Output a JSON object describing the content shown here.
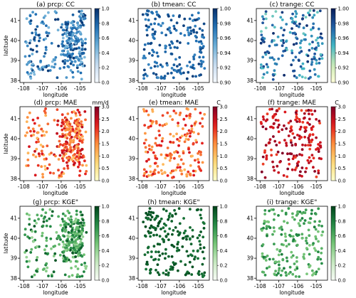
{
  "chart_data": [
    {
      "type": "scatter",
      "title": "(a) prcp: CC",
      "xlabel": "longitude",
      "ylabel": "latitude",
      "xlim": [
        -108.2,
        -104.4
      ],
      "ylim": [
        37.9,
        41.6
      ],
      "xticks": [
        "-108",
        "-107",
        "-106",
        "-105"
      ],
      "yticks": [
        "38",
        "39",
        "40",
        "41"
      ],
      "colormap": "Blues",
      "clim": [
        0,
        1
      ],
      "cbar_ticks": [
        "0.0",
        "0.2",
        "0.4",
        "0.6",
        "0.8",
        "1.0"
      ],
      "cbar_unit": "",
      "value_range": [
        0.25,
        0.98
      ],
      "point_count": 300,
      "cluster": "east"
    },
    {
      "type": "scatter",
      "title": "(b) tmean: CC",
      "xlabel": "longitude",
      "ylabel": "",
      "xlim": [
        -108.2,
        -104.4
      ],
      "ylim": [
        37.9,
        41.6
      ],
      "xticks": [
        "-108",
        "-107",
        "-106",
        "-105"
      ],
      "yticks": [
        "38",
        "39",
        "40",
        "41"
      ],
      "colormap": "Blues",
      "clim": [
        0.9,
        1
      ],
      "cbar_ticks": [
        "0.90",
        "0.92",
        "0.94",
        "0.96",
        "0.98",
        "1.00"
      ],
      "cbar_unit": "",
      "value_range": [
        0.955,
        0.995
      ],
      "point_count": 190,
      "cluster": "none"
    },
    {
      "type": "scatter",
      "title": "(c) trange: CC",
      "xlabel": "longitude",
      "ylabel": "",
      "xlim": [
        -108.2,
        -104.4
      ],
      "ylim": [
        37.9,
        41.6
      ],
      "xticks": [
        "-108",
        "-107",
        "-106",
        "-105"
      ],
      "yticks": [
        "38",
        "39",
        "40",
        "41"
      ],
      "colormap": "YlGnBu",
      "clim": [
        0.9,
        1
      ],
      "cbar_ticks": [
        "0.90",
        "0.92",
        "0.94",
        "0.96",
        "0.98",
        "1.00"
      ],
      "cbar_unit": "",
      "value_range": [
        0.92,
        0.995
      ],
      "point_count": 190,
      "cluster": "none"
    },
    {
      "type": "scatter",
      "title": "(d) prcp: MAE",
      "xlabel": "longitude",
      "ylabel": "latitude",
      "xlim": [
        -108.2,
        -104.4
      ],
      "ylim": [
        37.9,
        41.6
      ],
      "xticks": [
        "-108",
        "-107",
        "-106",
        "-105"
      ],
      "yticks": [
        "38",
        "39",
        "40",
        "41"
      ],
      "colormap": "YlOrRd",
      "clim": [
        0,
        3
      ],
      "cbar_ticks": [
        "0.0",
        "0.5",
        "1.0",
        "1.5",
        "2.0",
        "2.5",
        "3.0"
      ],
      "cbar_unit": "mm/d",
      "value_range": [
        0.4,
        2.6
      ],
      "point_count": 300,
      "cluster": "east"
    },
    {
      "type": "scatter",
      "title": "(e) tmean: MAE",
      "xlabel": "longitude",
      "ylabel": "",
      "xlim": [
        -108.2,
        -104.4
      ],
      "ylim": [
        37.9,
        41.6
      ],
      "xticks": [
        "-108",
        "-107",
        "-106",
        "-105"
      ],
      "yticks": [
        "38",
        "39",
        "40",
        "41"
      ],
      "colormap": "YlOrRd",
      "clim": [
        0,
        3
      ],
      "cbar_ticks": [
        "0.0",
        "0.5",
        "1.0",
        "1.5",
        "2.0",
        "2.5",
        "3.0"
      ],
      "cbar_unit": "C",
      "value_range": [
        0.6,
        2.4
      ],
      "point_count": 190,
      "cluster": "none"
    },
    {
      "type": "scatter",
      "title": "(f) trange: MAE",
      "xlabel": "longitude",
      "ylabel": "",
      "xlim": [
        -108.2,
        -104.4
      ],
      "ylim": [
        37.9,
        41.6
      ],
      "xticks": [
        "-108",
        "-107",
        "-106",
        "-105"
      ],
      "yticks": [
        "38",
        "39",
        "40",
        "41"
      ],
      "colormap": "YlOrRd",
      "clim": [
        0,
        3
      ],
      "cbar_ticks": [
        "0.0",
        "0.5",
        "1.0",
        "1.5",
        "2.0",
        "2.5",
        "3.0"
      ],
      "cbar_unit": "C",
      "value_range": [
        1.6,
        3.0
      ],
      "point_count": 190,
      "cluster": "none"
    },
    {
      "type": "scatter",
      "title": "(g) prcp: KGE\"",
      "xlabel": "longitude",
      "ylabel": "latitude",
      "xlim": [
        -108.2,
        -104.4
      ],
      "ylim": [
        37.9,
        41.6
      ],
      "xticks": [
        "-108",
        "-107",
        "-106",
        "-105"
      ],
      "yticks": [
        "38",
        "39",
        "40",
        "41"
      ],
      "colormap": "Greens",
      "clim": [
        0,
        1
      ],
      "cbar_ticks": [
        "0.0",
        "0.2",
        "0.4",
        "0.6",
        "0.8",
        "1.0"
      ],
      "cbar_unit": "",
      "value_range": [
        0.2,
        0.95
      ],
      "point_count": 300,
      "cluster": "east"
    },
    {
      "type": "scatter",
      "title": "(h) tmean: KGE\"",
      "xlabel": "longitude",
      "ylabel": "",
      "xlim": [
        -108.2,
        -104.4
      ],
      "ylim": [
        37.9,
        41.6
      ],
      "xticks": [
        "-108",
        "-107",
        "-106",
        "-105"
      ],
      "yticks": [
        "38",
        "39",
        "40",
        "41"
      ],
      "colormap": "Greens",
      "clim": [
        0,
        1
      ],
      "cbar_ticks": [
        "0.0",
        "0.2",
        "0.4",
        "0.6",
        "0.8",
        "1.0"
      ],
      "cbar_unit": "",
      "value_range": [
        0.78,
        0.97
      ],
      "point_count": 190,
      "cluster": "none"
    },
    {
      "type": "scatter",
      "title": "(i) trange: KGE\"",
      "xlabel": "longitude",
      "ylabel": "",
      "xlim": [
        -108.2,
        -104.4
      ],
      "ylim": [
        37.9,
        41.6
      ],
      "xticks": [
        "-108",
        "-107",
        "-106",
        "-105"
      ],
      "yticks": [
        "38",
        "39",
        "40",
        "41"
      ],
      "colormap": "Greens",
      "clim": [
        0,
        1
      ],
      "cbar_ticks": [
        "0.0",
        "0.2",
        "0.4",
        "0.6",
        "0.8",
        "1.0"
      ],
      "cbar_unit": "",
      "value_range": [
        0.35,
        0.8
      ],
      "point_count": 190,
      "cluster": "none"
    }
  ]
}
